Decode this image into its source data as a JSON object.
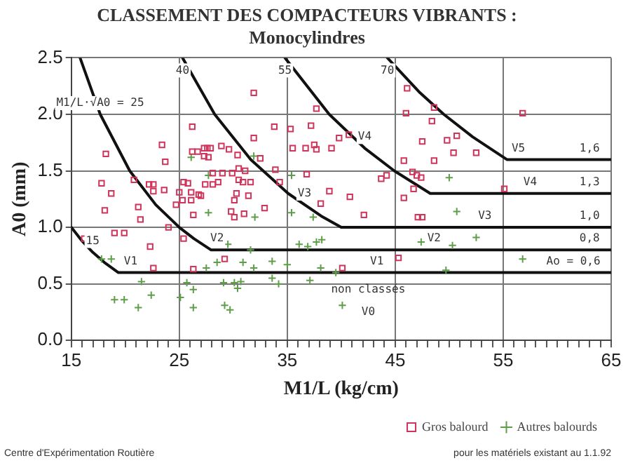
{
  "chart_data": {
    "type": "scatter",
    "title": "CLASSEMENT DES COMPACTEURS VIBRANTS :",
    "subtitle": "Monocylindres",
    "xlabel": "M1/L (kg/cm)",
    "ylabel": "A0 (mm)",
    "xlim": [
      15,
      65
    ],
    "ylim": [
      0,
      2.5
    ],
    "xticks": [
      15,
      {
        "value": 16,
        "label": null
      },
      {
        "value": 17,
        "label": null
      },
      {
        "value": 18,
        "label": null
      },
      {
        "value": 19,
        "label": null
      },
      {
        "value": 20,
        "label": null
      },
      {
        "value": 21,
        "label": null
      },
      {
        "value": 22,
        "label": null
      },
      {
        "value": 23,
        "label": null
      },
      {
        "value": 24,
        "label": null
      },
      25,
      {
        "value": 26,
        "label": null
      },
      {
        "value": 27,
        "label": null
      },
      {
        "value": 28,
        "label": null
      },
      {
        "value": 29,
        "label": null
      },
      {
        "value": 30,
        "label": null
      },
      {
        "value": 31,
        "label": null
      },
      {
        "value": 32,
        "label": null
      },
      {
        "value": 33,
        "label": null
      },
      {
        "value": 34,
        "label": null
      },
      35,
      {
        "value": 36,
        "label": null
      },
      {
        "value": 37,
        "label": null
      },
      {
        "value": 38,
        "label": null
      },
      {
        "value": 39,
        "label": null
      },
      {
        "value": 40,
        "label": null
      },
      {
        "value": 41,
        "label": null
      },
      {
        "value": 42,
        "label": null
      },
      {
        "value": 43,
        "label": null
      },
      {
        "value": 44,
        "label": null
      },
      45,
      {
        "value": 46,
        "label": null
      },
      {
        "value": 47,
        "label": null
      },
      {
        "value": 48,
        "label": null
      },
      {
        "value": 49,
        "label": null
      },
      {
        "value": 50,
        "label": null
      },
      {
        "value": 51,
        "label": null
      },
      {
        "value": 52,
        "label": null
      },
      {
        "value": 53,
        "label": null
      },
      {
        "value": 54,
        "label": null
      },
      55,
      {
        "value": 56,
        "label": null
      },
      {
        "value": 57,
        "label": null
      },
      {
        "value": 58,
        "label": null
      },
      {
        "value": 59,
        "label": null
      },
      {
        "value": 60,
        "label": null
      },
      {
        "value": 61,
        "label": null
      },
      {
        "value": 62,
        "label": null
      },
      {
        "value": 63,
        "label": null
      },
      {
        "value": 64,
        "label": null
      },
      65
    ],
    "yticks": [
      {
        "value": 0,
        "label": "0.0"
      },
      0.5,
      {
        "value": 1,
        "label": "1.0"
      },
      1.5,
      {
        "value": 2,
        "label": "2.0"
      },
      2.5
    ],
    "grid": true,
    "legend": "bottom right",
    "series": [
      {
        "name": "Gros balourd",
        "color": "#d0345a",
        "marker": "square",
        "x": [
          18.2,
          23.4,
          23.7,
          17.8,
          18.7,
          18.1,
          20.8,
          22.2,
          22.6,
          22.6,
          23.6,
          21.2,
          21.4,
          19.0,
          19.9,
          24.0,
          22.3,
          22.6,
          26.2,
          26.2,
          26.7,
          27.3,
          27.6,
          27.9,
          27.3,
          27.7,
          28.9,
          29.6,
          30.4,
          31.9,
          32.5,
          31.9,
          33.8,
          35.3,
          37.2,
          37.7,
          35.5,
          36.7,
          37.5,
          37.7,
          39.1,
          39.8,
          40.7,
          36.8,
          33.9,
          34.3,
          38.9,
          38.1,
          40.8,
          25.4,
          25.8,
          25.0,
          24.7,
          25.3,
          26.1,
          26.1,
          26.8,
          27.0,
          27.4,
          28.1,
          28.1,
          28.6,
          29.0,
          29.9,
          30.5,
          31.1,
          30.5,
          30.9,
          31.6,
          30.3,
          30.1,
          31.4,
          26.3,
          29.8,
          30.1,
          31.0,
          32.9,
          29.2,
          26.3,
          25.4,
          16.2,
          40.1,
          46.1,
          46.0,
          48.6,
          48.4,
          49.8,
          50.7,
          47.5,
          50.4,
          52.5,
          45.8,
          48.6,
          56.8,
          43.7,
          44.2,
          46.6,
          47.0,
          47.4,
          46.7,
          45.8,
          42.1,
          47.1,
          47.5,
          55.1,
          45.3
        ],
        "values": [
          1.65,
          1.73,
          1.58,
          1.39,
          1.3,
          1.15,
          1.42,
          1.38,
          1.38,
          1.32,
          1.33,
          1.18,
          1.07,
          0.95,
          0.95,
          1.0,
          0.83,
          0.64,
          1.89,
          1.67,
          1.67,
          1.7,
          1.7,
          1.7,
          1.63,
          1.62,
          1.72,
          1.69,
          1.64,
          1.79,
          1.61,
          2.19,
          1.89,
          1.87,
          1.9,
          2.05,
          1.7,
          1.7,
          1.73,
          1.69,
          1.7,
          1.79,
          1.82,
          1.47,
          1.51,
          1.4,
          1.32,
          1.21,
          1.27,
          1.4,
          1.39,
          1.31,
          1.2,
          1.24,
          1.31,
          1.24,
          1.29,
          1.28,
          1.38,
          1.48,
          1.38,
          1.4,
          1.48,
          1.48,
          1.52,
          1.5,
          1.42,
          1.4,
          1.4,
          1.3,
          1.24,
          1.28,
          1.11,
          1.14,
          1.09,
          1.12,
          1.17,
          0.72,
          0.63,
          0.9,
          0.9,
          0.64,
          2.23,
          2.01,
          2.06,
          1.94,
          1.77,
          1.81,
          1.76,
          1.66,
          1.66,
          1.59,
          1.59,
          2.01,
          1.43,
          1.46,
          1.49,
          1.46,
          1.44,
          1.34,
          1.26,
          1.11,
          1.09,
          1.09,
          1.34,
          0.73
        ]
      },
      {
        "name": "Autres balourds",
        "color": "#5e9e48",
        "marker": "cross",
        "x": [
          26.1,
          27.7,
          31.9,
          35.4,
          27.7,
          32.0,
          35.4,
          37.4,
          36.1,
          36.9,
          37.7,
          38.2,
          29.5,
          31.6,
          17.8,
          18.7,
          21.5,
          19.0,
          19.9,
          21.2,
          22.4,
          25.1,
          25.7,
          26.3,
          26.3,
          27.5,
          28.5,
          29.1,
          29.2,
          29.7,
          30.1,
          30.7,
          30.4,
          30.9,
          31.9,
          33.6,
          33.6,
          34.2,
          35.0,
          37.1,
          38.1,
          39.5,
          40.1,
          50.0,
          50.7,
          47.4,
          50.3,
          52.5,
          56.8,
          49.7
        ],
        "values": [
          1.62,
          1.46,
          1.63,
          1.46,
          1.13,
          1.09,
          1.13,
          1.09,
          0.85,
          0.83,
          0.87,
          0.89,
          0.85,
          0.8,
          0.72,
          0.72,
          0.52,
          0.36,
          0.36,
          0.29,
          0.4,
          0.38,
          0.51,
          0.45,
          0.29,
          0.64,
          0.69,
          0.51,
          0.31,
          0.27,
          0.51,
          0.52,
          0.46,
          0.69,
          0.64,
          0.7,
          0.55,
          0.5,
          0.67,
          0.53,
          0.64,
          0.6,
          0.31,
          1.44,
          1.14,
          0.87,
          0.84,
          0.91,
          0.72,
          0.62
        ]
      },
      {
        "type": "line",
        "color": "#111111",
        "x": [
          15,
          15.99,
          16.98,
          18.06,
          19.36,
          65
        ],
        "values": [
          1.0,
          0.88,
          0.78,
          0.69,
          0.6,
          0.6
        ]
      },
      {
        "type": "line",
        "color": "#111111",
        "x": [
          15.81,
          17.68,
          20.41,
          22.82,
          25.0,
          26.35,
          27.95,
          65
        ],
        "values": [
          2.5,
          2.0,
          1.5,
          1.2,
          1.0,
          0.9,
          0.8,
          0.8
        ]
      },
      {
        "type": "line",
        "color": "#111111",
        "x": [
          25.3,
          28.28,
          31.62,
          35.08,
          38.14,
          40.0,
          65
        ],
        "values": [
          2.5,
          2.0,
          1.6,
          1.3,
          1.1,
          1.0,
          1.0
        ]
      },
      {
        "type": "line",
        "color": "#111111",
        "x": [
          34.79,
          38.89,
          42.18,
          44.91,
          48.24,
          65
        ],
        "values": [
          2.5,
          2.0,
          1.7,
          1.5,
          1.3,
          1.3
        ]
      },
      {
        "type": "line",
        "color": "#111111",
        "x": [
          44.27,
          47.19,
          49.5,
          52.17,
          55.34,
          65
        ],
        "values": [
          2.5,
          2.2,
          2.0,
          1.8,
          1.6,
          1.6
        ]
      }
    ],
    "annotations": [
      {
        "text": "M1/L·√A0 = 25",
        "x": 17.68,
        "y": 2.0
      },
      {
        "text": "15",
        "x": 16.98,
        "y": 0.78
      },
      {
        "text": "40",
        "x": 25.3,
        "y": 2.5
      },
      {
        "text": "55",
        "x": 34.79,
        "y": 2.5
      },
      {
        "text": "70",
        "x": 44.27,
        "y": 2.5
      },
      {
        "text": "1,6",
        "x": 63,
        "y": 1.6
      },
      {
        "text": "1,3",
        "x": 63,
        "y": 1.3
      },
      {
        "text": "1,0",
        "x": 63,
        "y": 1.0
      },
      {
        "text": "0,8",
        "x": 63,
        "y": 0.8
      },
      {
        "text": "Ao = 0,6",
        "x": 61.5,
        "y": 0.6
      },
      {
        "text": "V1",
        "x": 20.5,
        "y": 0.6
      },
      {
        "text": "V2",
        "x": 28.5,
        "y": 0.8
      },
      {
        "text": "V3",
        "x": 36.6,
        "y": 1.2
      },
      {
        "text": "V4",
        "x": 42.18,
        "y": 1.7
      },
      {
        "text": "V5",
        "x": 56.4,
        "y": 1.6
      },
      {
        "text": "V4",
        "x": 57.5,
        "y": 1.3
      },
      {
        "text": "V3",
        "x": 53.3,
        "y": 1.0
      },
      {
        "text": "V2",
        "x": 48.6,
        "y": 0.8
      },
      {
        "text": "V1",
        "x": 43.3,
        "y": 0.6
      },
      "Centre d'Expérimentation Routière",
      "non classés",
      "V0",
      "pour les matériels existant au 1.1.92"
    ]
  }
}
